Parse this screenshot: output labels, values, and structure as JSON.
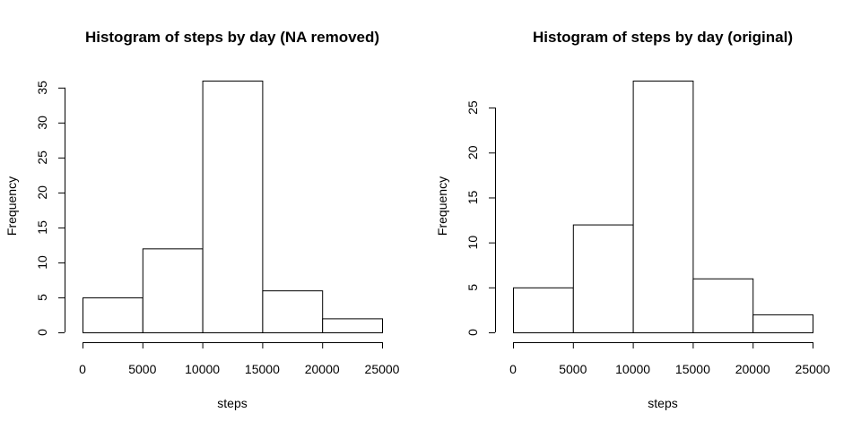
{
  "chart_data": [
    {
      "type": "bar",
      "title": "Histogram of steps by day (NA removed)",
      "xlabel": "steps",
      "ylabel": "Frequency",
      "bins": [
        [
          0,
          5000
        ],
        [
          5000,
          10000
        ],
        [
          10000,
          15000
        ],
        [
          15000,
          20000
        ],
        [
          20000,
          25000
        ]
      ],
      "values": [
        5,
        12,
        36,
        6,
        2
      ],
      "xlim": [
        0,
        25000
      ],
      "ylim": [
        0,
        36
      ],
      "x_ticks": [
        0,
        5000,
        10000,
        15000,
        20000,
        25000
      ],
      "y_ticks": [
        0,
        5,
        10,
        15,
        20,
        25,
        30,
        35
      ],
      "grid": false
    },
    {
      "type": "bar",
      "title": "Histogram of steps by day (original)",
      "xlabel": "steps",
      "ylabel": "Frequency",
      "bins": [
        [
          0,
          5000
        ],
        [
          5000,
          10000
        ],
        [
          10000,
          15000
        ],
        [
          15000,
          20000
        ],
        [
          20000,
          25000
        ]
      ],
      "values": [
        5,
        12,
        28,
        6,
        2
      ],
      "xlim": [
        0,
        25000
      ],
      "ylim": [
        0,
        28
      ],
      "x_ticks": [
        0,
        5000,
        10000,
        15000,
        20000,
        25000
      ],
      "y_ticks": [
        0,
        5,
        10,
        15,
        20,
        25
      ],
      "grid": false
    }
  ]
}
